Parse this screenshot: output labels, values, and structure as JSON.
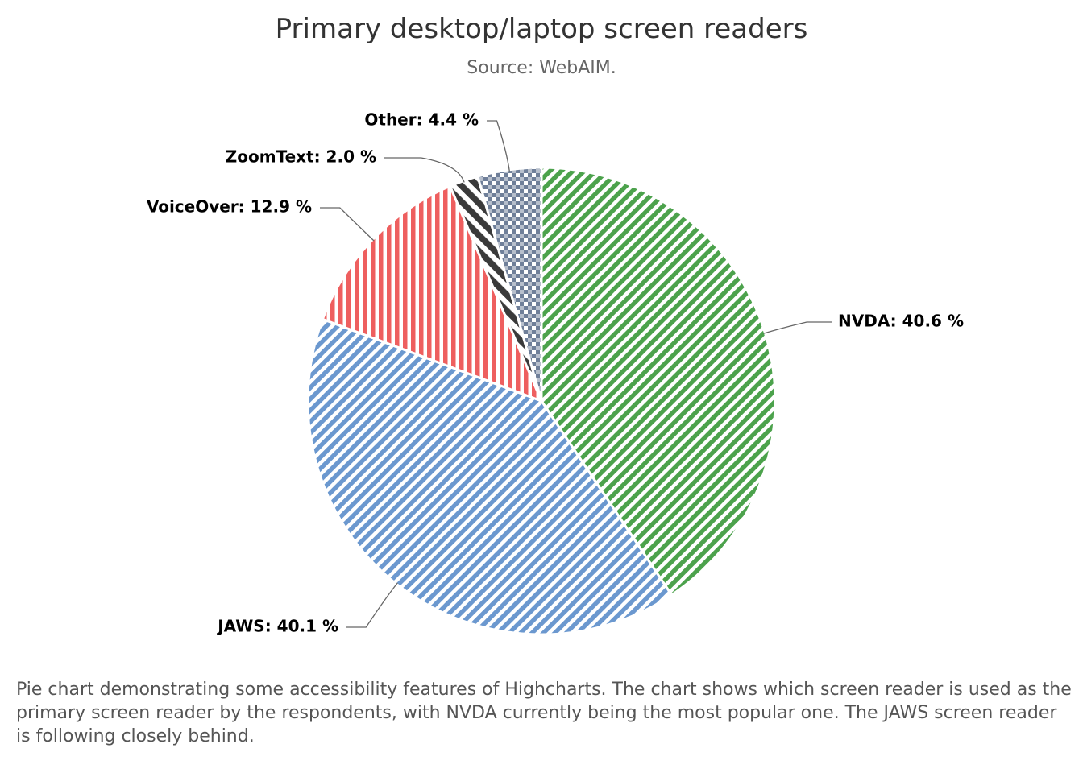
{
  "chart_data": {
    "type": "pie",
    "title": "Primary desktop/laptop screen readers",
    "subtitle": "Source: WebAIM.",
    "values": [
      40.6,
      40.1,
      12.9,
      2.0,
      4.4
    ],
    "value_labels": [
      "NVDA: 40.6 %",
      "JAWS: 40.1 %",
      "VoiceOver: 12.9 %",
      "ZoomText: 2.0 %",
      "Other: 4.4 %"
    ],
    "colors": [
      "#4ca24c",
      "#6b98cf",
      "#ee5f5f",
      "#3a3a3a",
      "#6f7f99"
    ],
    "description": "Pie chart demonstrating some accessibility features of Highcharts. The chart shows which screen reader is used as the primary screen reader by the respondents, with NVDA currently being the most popular one. The JAWS screen reader is following closely behind."
  }
}
